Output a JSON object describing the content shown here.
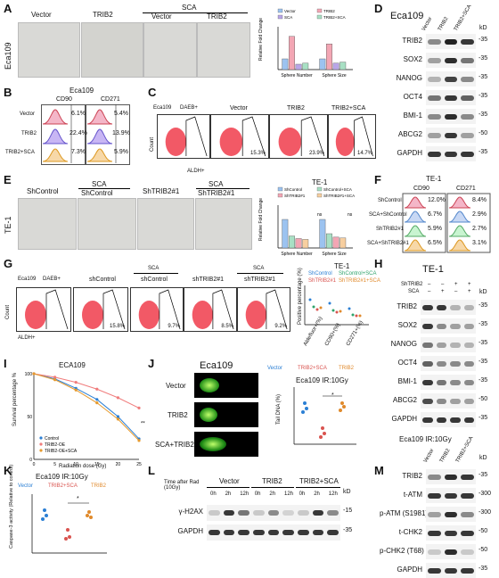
{
  "panels": {
    "A": {
      "letter": "A",
      "cell": "Eca109",
      "group_labels": [
        "Vector",
        "TRIB2",
        "Vector",
        "TRIB2"
      ],
      "sca": "SCA",
      "legend": [
        "Vector",
        "TRIB2",
        "SCA",
        "TRIB2+SCA"
      ],
      "ylabel": "Relative Fold Change",
      "xcats": [
        "Sphere Number",
        "Sphere Size"
      ]
    },
    "B": {
      "letter": "B",
      "title": "Eca109",
      "cols": [
        "CD90",
        "CD271"
      ],
      "rows": [
        "Vector",
        "TRIB2",
        "TRIB2+SCA"
      ],
      "cd90": [
        "6.1%",
        "22.4%",
        "7.3%"
      ],
      "cd271": [
        "5.4%",
        "13.9%",
        "5.9%"
      ]
    },
    "C": {
      "letter": "C",
      "gates": [
        "Eca109",
        "DAEB+",
        "Vector",
        "TRIB2",
        "TRIB2+SCA"
      ],
      "pcts": [
        "15.3%",
        "23.9%",
        "14.7%"
      ],
      "ylabel": "Count",
      "xlabel": "ALDH+"
    },
    "D": {
      "letter": "D",
      "title": "Eca109",
      "cols": [
        "Vector",
        "TRIB2",
        "TRIB2+SCA"
      ],
      "kd": "kD",
      "rows": [
        {
          "name": "TRIB2",
          "kd": "-35"
        },
        {
          "name": "SOX2",
          "kd": "-35"
        },
        {
          "name": "NANOG",
          "kd": "-35"
        },
        {
          "name": "OCT4",
          "kd": "-35"
        },
        {
          "name": "BMI-1",
          "kd": "-35"
        },
        {
          "name": "ABCG2",
          "kd": "-50"
        },
        {
          "name": "GAPDH",
          "kd": "-35"
        }
      ]
    },
    "E": {
      "letter": "E",
      "cell": "TE-1",
      "groups": [
        "ShControl",
        "ShControl",
        "ShTRIB2#1",
        "ShTRIB2#1"
      ],
      "sca": [
        "SCA",
        "SCA"
      ],
      "title": "TE-1",
      "legend": [
        "ShControl",
        "ShControl+SCA",
        "ShTRIB2#1",
        "ShTRIB2#1+SCA"
      ],
      "ylabel": "Relative Fold Change",
      "xcats": [
        "Sphere Number",
        "Sphere Size"
      ],
      "ns": "ns"
    },
    "F": {
      "letter": "F",
      "title": "TE-1",
      "cols": [
        "CD90",
        "CD271"
      ],
      "rows": [
        "ShControl",
        "SCA+ShControl",
        "ShTRIB2#1",
        "SCA+ShTRIB2#1"
      ],
      "cd90": [
        "12.0%",
        "6.7%",
        "5.9%",
        "6.5%"
      ],
      "cd271": [
        "8.4%",
        "2.9%",
        "2.7%",
        "3.1%"
      ]
    },
    "G": {
      "letter": "G",
      "gates": [
        "Eca109",
        "DAEB+",
        "shControl",
        "shControl",
        "shTRIB2#1",
        "shTRIB2#1"
      ],
      "sca": [
        "SCA",
        "SCA"
      ],
      "pcts": [
        "15.8%",
        "9.7%",
        "8.5%",
        "9.2%"
      ],
      "ylabel": "Count",
      "xlabel": "ALDH+",
      "title": "TE-1",
      "legend": [
        "ShControl",
        "ShControl+SCA",
        "ShTRIB2#1",
        "ShTRIB2#1+SCA"
      ],
      "side_ylabel": "Positive percentage (%)",
      "xcats": [
        "Aldefluor+(%)",
        "CD90+(%)",
        "CD271+(%)"
      ]
    },
    "H": {
      "letter": "H",
      "title": "TE-1",
      "conds": [
        {
          "name": "ShTRIB2",
          "vals": [
            "–",
            "–",
            "+",
            "+"
          ]
        },
        {
          "name": "SCA",
          "vals": [
            "–",
            "+",
            "–",
            "+"
          ]
        }
      ],
      "kd": "kD",
      "rows": [
        {
          "name": "TRIB2",
          "kd": "-35"
        },
        {
          "name": "SOX2",
          "kd": "-35"
        },
        {
          "name": "NANOG",
          "kd": "-35"
        },
        {
          "name": "OCT4",
          "kd": "-35"
        },
        {
          "name": "BMI-1",
          "kd": "-35"
        },
        {
          "name": "ABCG2",
          "kd": "-50"
        },
        {
          "name": "GAPDH",
          "kd": "-35"
        }
      ]
    },
    "I": {
      "letter": "I",
      "title": "ECA109",
      "ylabel": "Survival percentage %",
      "xlabel": "Radiation dose (Gy)",
      "legend": [
        "Control",
        "TRIB2-OE",
        "TRIB2-OE+SCA"
      ],
      "sig": "**"
    },
    "J": {
      "letter": "J",
      "title": "Eca109",
      "rows": [
        "Vector",
        "TRIB2",
        "SCA+TRIB2"
      ],
      "plot_title": "Eca109 IR:10Gy",
      "legend": [
        "Vector",
        "TRIB2+SCA",
        "TRIB2"
      ],
      "ylabel": "Tail DNA (%)",
      "sig": "*"
    },
    "K": {
      "letter": "K",
      "title": "Eca109 IR:10Gy",
      "legend": [
        "Vector",
        "TRIB2+SCA",
        "TRIB2"
      ],
      "ylabel": "Caspase-3 activity (Relative to control)",
      "sig": "*"
    },
    "L": {
      "letter": "L",
      "time_label": "Time after Rad (10Gy)",
      "groups": [
        "Vector",
        "TRIB2",
        "TRIB2+SCA"
      ],
      "times": [
        "0h",
        "2h",
        "12h",
        "0h",
        "2h",
        "12h",
        "0h",
        "2h",
        "12h"
      ],
      "kd": "kD",
      "rows": [
        {
          "name": "γ-H2AX",
          "kd": "-15"
        },
        {
          "name": "GAPDH",
          "kd": "-35"
        }
      ]
    },
    "M": {
      "letter": "M",
      "title": "Eca109 IR:10Gy",
      "cols": [
        "Vector",
        "TRIB2",
        "TRIB2+SCA"
      ],
      "kd": "kD",
      "rows": [
        {
          "name": "TRIB2",
          "kd": "-35"
        },
        {
          "name": "t-ATM",
          "kd": "-300"
        },
        {
          "name": "p-ATM (S1981)",
          "kd": "-300"
        },
        {
          "name": "t-CHK2",
          "kd": "-50"
        },
        {
          "name": "p-CHK2 (T68)",
          "kd": "-50"
        },
        {
          "name": "GAPDH",
          "kd": "-35"
        }
      ]
    }
  },
  "chart_data": [
    {
      "type": "bar",
      "panel": "A",
      "categories": [
        "Sphere Number",
        "Sphere Size"
      ],
      "ylim": [
        0,
        4
      ],
      "series": [
        {
          "name": "Vector",
          "values": [
            1,
            1
          ]
        },
        {
          "name": "TRIB2",
          "values": [
            3.1,
            2.4
          ]
        },
        {
          "name": "SCA",
          "values": [
            0.5,
            0.6
          ]
        },
        {
          "name": "TRIB2+SCA",
          "values": [
            0.6,
            0.7
          ]
        }
      ]
    },
    {
      "type": "bar",
      "panel": "E",
      "categories": [
        "Sphere Number",
        "Sphere Size"
      ],
      "ylim": [
        0,
        1.5
      ],
      "series": [
        {
          "name": "ShControl",
          "values": [
            1,
            1
          ]
        },
        {
          "name": "ShControl+SCA",
          "values": [
            0.42,
            0.5
          ]
        },
        {
          "name": "ShTRIB2#1",
          "values": [
            0.33,
            0.38
          ]
        },
        {
          "name": "ShTRIB2#1+SCA",
          "values": [
            0.3,
            0.35
          ]
        }
      ]
    },
    {
      "type": "line",
      "panel": "I",
      "x": [
        0,
        5,
        10,
        15,
        20,
        25
      ],
      "xlim": [
        0,
        25
      ],
      "ylim": [
        0,
        100
      ],
      "series": [
        {
          "name": "Control",
          "values": [
            100,
            94,
            83,
            70,
            50,
            24
          ]
        },
        {
          "name": "TRIB2-OE",
          "values": [
            100,
            96,
            90,
            82,
            72,
            60
          ]
        },
        {
          "name": "TRIB2-OE+SCA",
          "values": [
            100,
            93,
            81,
            66,
            47,
            22
          ]
        }
      ]
    }
  ]
}
